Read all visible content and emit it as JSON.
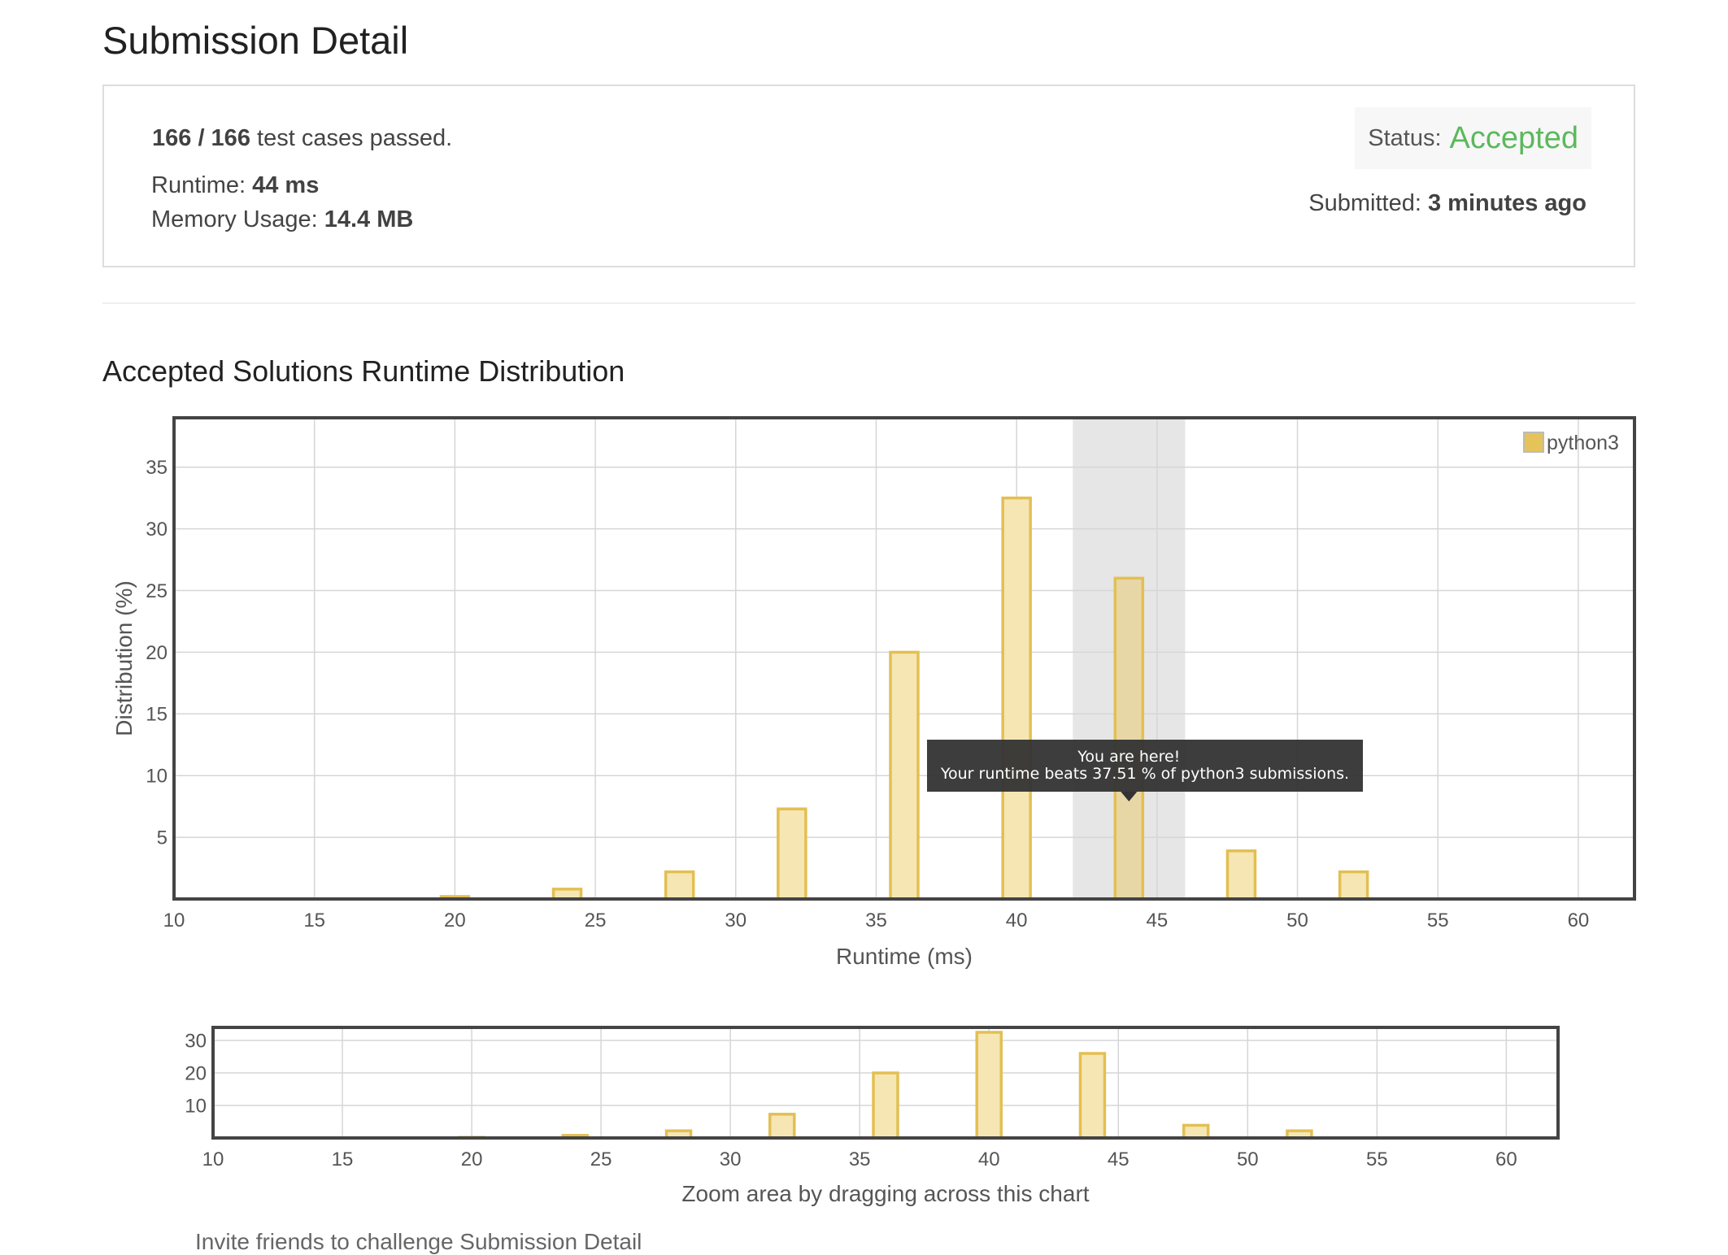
{
  "page": {
    "title": "Submission Detail",
    "section_title": "Accepted Solutions Runtime Distribution",
    "truncated_text": "Invite friends to challenge Submission Detail"
  },
  "summary": {
    "tests_passed": "166 / 166",
    "tests_suffix": "test cases passed.",
    "runtime_label": "Runtime:",
    "runtime_value": "44 ms",
    "memory_label": "Memory Usage:",
    "memory_value": "14.4 MB",
    "status_label": "Status:",
    "status_value": "Accepted",
    "submitted_label": "Submitted:",
    "submitted_value": "3 minutes ago"
  },
  "colors": {
    "accepted": "#5cb85c",
    "bar_fill": "#f5e6b4",
    "bar_stroke": "#e3bf52",
    "highlight_band": "#e6e6e6",
    "tooltip_bg": "#333333"
  },
  "chart_data": [
    {
      "type": "bar",
      "xlabel": "Runtime (ms)",
      "ylabel": "Distribution (%)",
      "xlim": [
        10,
        62
      ],
      "ylim": [
        0,
        39
      ],
      "xticks": [
        10,
        15,
        20,
        25,
        30,
        35,
        40,
        45,
        50,
        55,
        60
      ],
      "yticks": [
        5,
        10,
        15,
        20,
        25,
        30,
        35
      ],
      "grid": true,
      "legend_position": "top-right",
      "series": [
        {
          "name": "python3",
          "x": [
            20,
            24,
            28,
            32,
            36,
            40,
            44,
            48,
            52
          ],
          "values": [
            0.2,
            0.8,
            2.2,
            7.3,
            20.0,
            32.5,
            26.0,
            3.9,
            2.2
          ]
        }
      ],
      "highlight": {
        "x": 44,
        "range": [
          42,
          46
        ]
      },
      "tooltip": {
        "line1": "You are here!",
        "line2": "Your runtime beats 37.51 % of python3 submissions."
      }
    },
    {
      "type": "bar",
      "caption": "Zoom area by dragging across this chart",
      "xlim": [
        10,
        62
      ],
      "ylim": [
        0,
        34
      ],
      "xticks": [
        10,
        15,
        20,
        25,
        30,
        35,
        40,
        45,
        50,
        55,
        60
      ],
      "yticks": [
        10,
        20,
        30
      ],
      "grid": true,
      "series": [
        {
          "x": [
            20,
            24,
            28,
            32,
            36,
            40,
            44,
            48,
            52
          ],
          "values": [
            0.2,
            0.8,
            2.2,
            7.3,
            20.0,
            32.5,
            26.0,
            3.9,
            2.2
          ]
        }
      ]
    }
  ]
}
